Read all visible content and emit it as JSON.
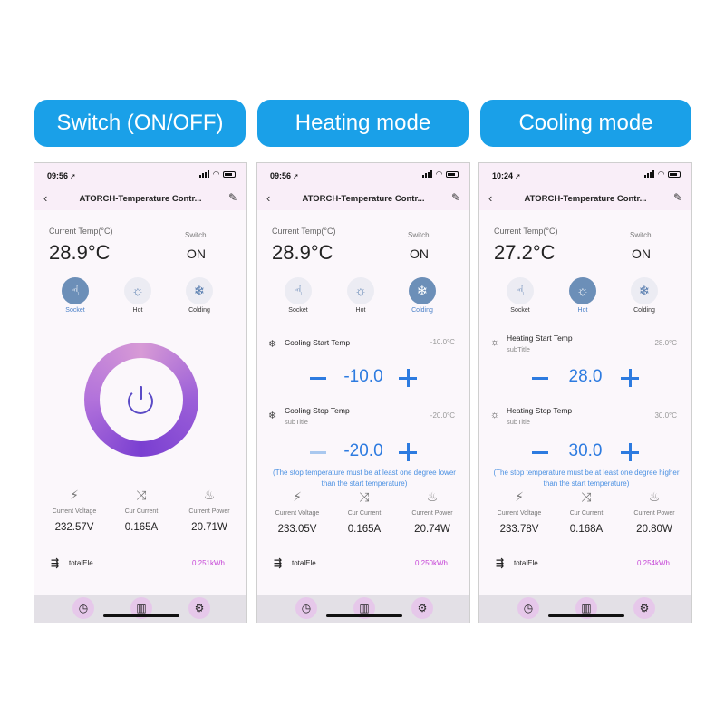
{
  "headings": [
    "Switch (ON/OFF)",
    "Heating mode",
    "Cooling mode"
  ],
  "common": {
    "title": "ATORCH-Temperature Contr...",
    "cur_label": "Current Temp(°C)",
    "switch_label": "Switch",
    "modes": [
      "Socket",
      "Hot",
      "Colding"
    ],
    "metric_labels": [
      "Current Voltage",
      "Cur Current",
      "Current Power"
    ],
    "total_label": "totalEle",
    "subtitle": "subTitle",
    "note": "(The stop temperature must be at least one degree lower than the start temperature)",
    "note_line1": "(The stop temperature must be at least one degree lower",
    "note_line2": "than the start temperature)",
    "note3_line1": "(The stop temperature must be at least one degree higher",
    "note3_line2": "than the start temperature)"
  },
  "phones": [
    {
      "time": "09:56",
      "current_temp": "28.9°C",
      "switch_state": "ON",
      "active_mode": "Socket",
      "voltage": "232.57V",
      "current": "0.165A",
      "power": "20.71W",
      "total": "0.251kWh"
    },
    {
      "time": "09:56",
      "current_temp": "28.9°C",
      "switch_state": "ON",
      "active_mode": "Colding",
      "start_label": "Cooling Start Temp",
      "start_value": "-10.0°C",
      "start_set": "-10.0",
      "stop_label": "Cooling Stop Temp",
      "stop_value": "-20.0°C",
      "stop_set": "-20.0",
      "voltage": "233.05V",
      "current": "0.165A",
      "power": "20.74W",
      "total": "0.250kWh"
    },
    {
      "time": "10:24",
      "current_temp": "27.2°C",
      "switch_state": "ON",
      "active_mode": "Hot",
      "start_label": "Heating Start Temp",
      "start_value": "28.0°C",
      "start_set": "28.0",
      "stop_label": "Heating Stop Temp",
      "stop_value": "30.0°C",
      "stop_set": "30.0",
      "voltage": "233.78V",
      "current": "0.168A",
      "power": "20.80W",
      "total": "0.254kWh"
    }
  ],
  "colors": {
    "heading_bg": "#1aa0e8",
    "accent_blue": "#2d7be0",
    "total_magenta": "#c545d6",
    "ring_purple": "#9b5fd8"
  },
  "icons": [
    "hand-pointer-icon",
    "sun-icon",
    "snowflake-icon",
    "bolt-icon",
    "shuffle-icon",
    "flame-icon",
    "energy-icon",
    "clock-icon",
    "chart-icon",
    "gear-icon",
    "power-icon"
  ]
}
